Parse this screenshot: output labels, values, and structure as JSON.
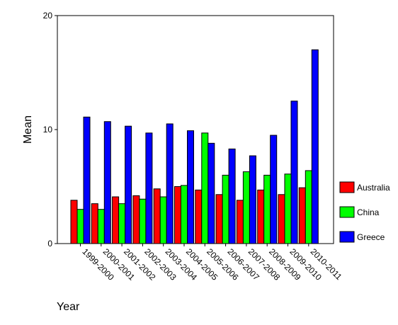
{
  "chart_data": {
    "type": "bar",
    "title": "",
    "xlabel": "Year",
    "ylabel": "Mean",
    "ylim": [
      0,
      20
    ],
    "yticks": [
      "0",
      "10",
      "20"
    ],
    "grid": false,
    "legend_position": "right",
    "categories": [
      "1999-2000",
      "2000-2001",
      "2001-2002",
      "2002-2003",
      "2003-2004",
      "2004-2005",
      "2005-2006",
      "2006-2007",
      "2007-2008",
      "2008-2009",
      "2009-2010",
      "2010-2011"
    ],
    "series": [
      {
        "name": "Australia",
        "color": "#ff0000",
        "values": [
          3.8,
          3.5,
          4.1,
          4.2,
          4.8,
          5.0,
          4.7,
          4.3,
          3.8,
          4.7,
          4.3,
          4.9
        ]
      },
      {
        "name": "China",
        "color": "#00ff00",
        "values": [
          3.0,
          3.0,
          3.5,
          3.9,
          4.1,
          5.1,
          9.7,
          6.0,
          6.3,
          6.0,
          6.1,
          6.4
        ]
      },
      {
        "name": "Greece",
        "color": "#0000ff",
        "values": [
          11.1,
          10.7,
          10.3,
          9.7,
          10.5,
          9.9,
          8.8,
          8.3,
          7.7,
          9.5,
          12.5,
          17.0
        ]
      }
    ]
  }
}
